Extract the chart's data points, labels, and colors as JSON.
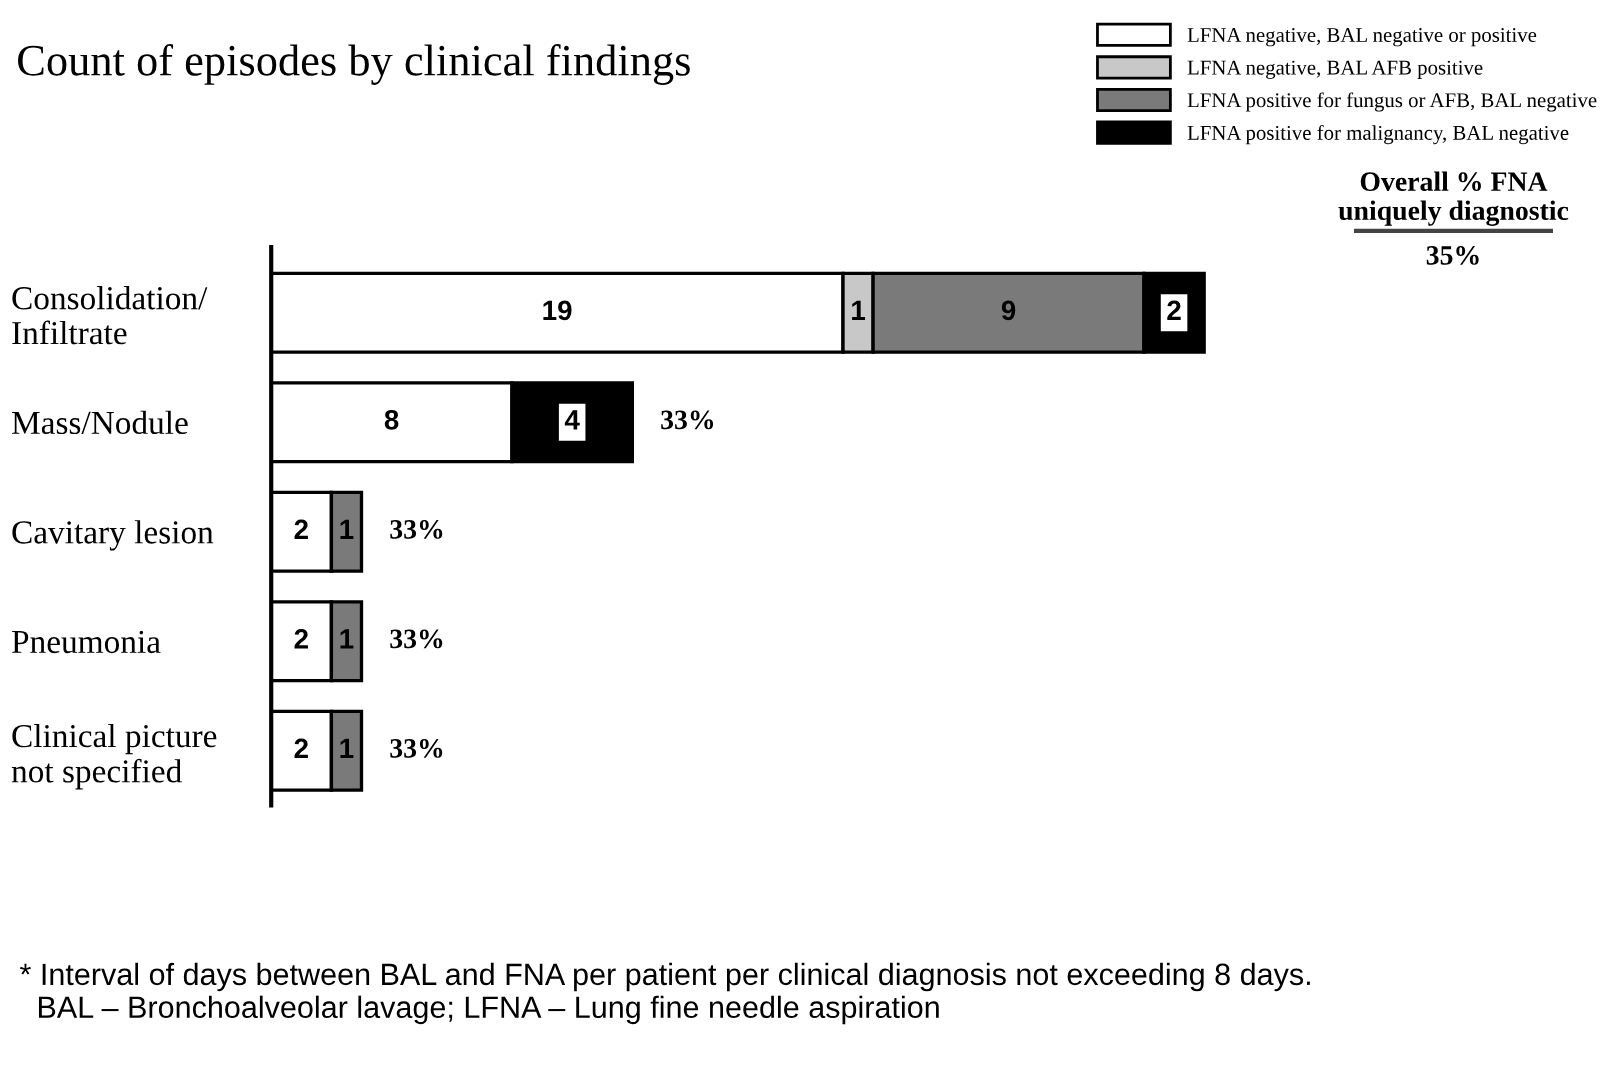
{
  "chart_data": {
    "type": "bar",
    "orientation": "horizontal",
    "stacked": true,
    "title": "Count of episodes by clinical findings",
    "categories": [
      "Consolidation/\nInfiltrate",
      "Mass/Nodule",
      "Cavitary lesion",
      "Pneumonia",
      "Clinical picture\nnot specified"
    ],
    "series": [
      {
        "name": "LFNA negative, BAL negative or positive",
        "color": "#ffffff",
        "values": [
          19,
          8,
          2,
          2,
          2
        ],
        "value_labels": [
          "19",
          "8",
          "2",
          "2",
          "2"
        ]
      },
      {
        "name": "LFNA negative, BAL AFB positive",
        "color": "#c8c8c8",
        "values": [
          1,
          0,
          0,
          0,
          0
        ],
        "value_labels": [
          "1",
          null,
          null,
          null,
          null
        ]
      },
      {
        "name": "LFNA positive for fungus or AFB, BAL negative",
        "color": "#7a7a7a",
        "values": [
          9,
          0,
          1,
          1,
          1
        ],
        "value_labels": [
          "9",
          null,
          "1",
          "1",
          "1"
        ]
      },
      {
        "name": "LFNA positive for malignancy, BAL negative",
        "color": "#000000",
        "values": [
          2,
          4,
          0,
          0,
          0
        ],
        "value_labels": [
          "2",
          "4",
          null,
          null,
          null
        ]
      }
    ],
    "legend": "top right",
    "annotations": [
      "Overall % FNA\nuniquely diagnostic",
      "35%",
      "33%",
      "33%",
      "33%",
      "33%",
      "* Interval of days between BAL and FNA per patient per clinical diagnosis not exceeding 8 days.\n  BAL – Bronchoalveolar lavage; LFNA – Lung fine needle aspiration"
    ]
  }
}
